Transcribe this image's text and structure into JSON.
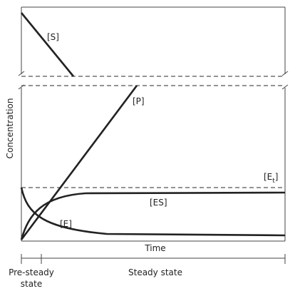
{
  "axes": {
    "y_label": "Concentration",
    "x_label": "Time"
  },
  "curves": {
    "s": "[S]",
    "p": "[P]",
    "et": [
      "[E",
      "t",
      "]"
    ],
    "es": "[ES]",
    "e": "[E]"
  },
  "phases": {
    "pre_steady": [
      "Pre-steady",
      "state"
    ],
    "steady": "Steady state"
  }
}
